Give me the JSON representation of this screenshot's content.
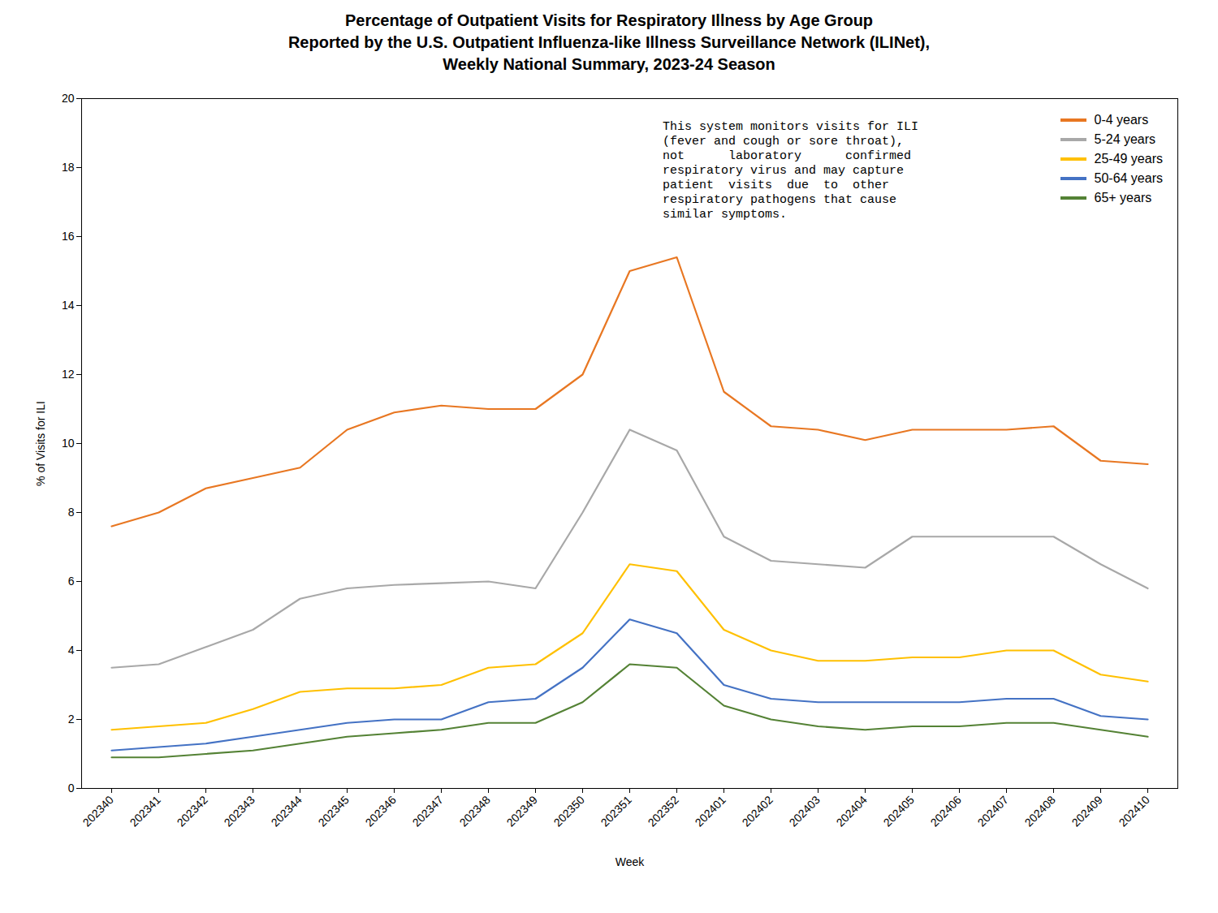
{
  "chart_data": {
    "type": "line",
    "title": "Percentage of Outpatient Visits for Respiratory Illness by Age Group\nReported by the U.S. Outpatient Influenza-like Illness Surveillance Network (ILINet),\nWeekly National Summary, 2023-24 Season",
    "xlabel": "Week",
    "ylabel": "% of Visits for ILI",
    "annotation": "This system monitors visits for ILI\n(fever and cough or sore throat),\nnot      laboratory      confirmed\nrespiratory virus and may capture\npatient  visits  due  to  other\nrespiratory pathogens that cause\nsimilar symptoms.",
    "categories": [
      "202340",
      "202341",
      "202342",
      "202343",
      "202344",
      "202345",
      "202346",
      "202347",
      "202348",
      "202349",
      "202350",
      "202351",
      "202352",
      "202401",
      "202402",
      "202403",
      "202404",
      "202405",
      "202406",
      "202407",
      "202408",
      "202409",
      "202410"
    ],
    "series": [
      {
        "name": "0-4 years",
        "color": "#E87722",
        "values": [
          7.6,
          8.0,
          8.7,
          9.0,
          9.3,
          10.4,
          10.9,
          11.1,
          11.0,
          11.0,
          12.0,
          15.0,
          15.4,
          11.5,
          10.5,
          10.4,
          10.1,
          10.4,
          10.4,
          10.4,
          10.5,
          9.5,
          9.4
        ]
      },
      {
        "name": "5-24 years",
        "color": "#A8A8A8",
        "values": [
          3.5,
          3.6,
          4.1,
          4.6,
          5.5,
          5.8,
          5.9,
          5.95,
          6.0,
          5.8,
          8.0,
          10.4,
          9.8,
          7.3,
          6.6,
          6.5,
          6.4,
          7.3,
          7.3,
          7.3,
          7.3,
          6.5,
          5.8
        ]
      },
      {
        "name": "25-49 years",
        "color": "#FFC000",
        "values": [
          1.7,
          1.8,
          1.9,
          2.3,
          2.8,
          2.9,
          2.9,
          3.0,
          3.5,
          3.6,
          4.5,
          6.5,
          6.3,
          4.6,
          4.0,
          3.7,
          3.7,
          3.8,
          3.8,
          4.0,
          4.0,
          3.3,
          3.1
        ]
      },
      {
        "name": "50-64 years",
        "color": "#4472C4",
        "values": [
          1.1,
          1.2,
          1.3,
          1.5,
          1.7,
          1.9,
          2.0,
          2.0,
          2.5,
          2.6,
          3.5,
          4.9,
          4.5,
          3.0,
          2.6,
          2.5,
          2.5,
          2.5,
          2.5,
          2.6,
          2.6,
          2.1,
          2.0
        ]
      },
      {
        "name": "65+ years",
        "color": "#548235",
        "values": [
          0.9,
          0.9,
          1.0,
          1.1,
          1.3,
          1.5,
          1.6,
          1.7,
          1.9,
          1.9,
          2.5,
          3.6,
          3.5,
          2.4,
          2.0,
          1.8,
          1.7,
          1.8,
          1.8,
          1.9,
          1.9,
          1.7,
          1.5
        ]
      }
    ],
    "ylim": [
      0,
      20
    ],
    "yticks": [
      0,
      2,
      4,
      6,
      8,
      10,
      12,
      14,
      16,
      18,
      20
    ],
    "grid": false,
    "legend": "upper right"
  }
}
